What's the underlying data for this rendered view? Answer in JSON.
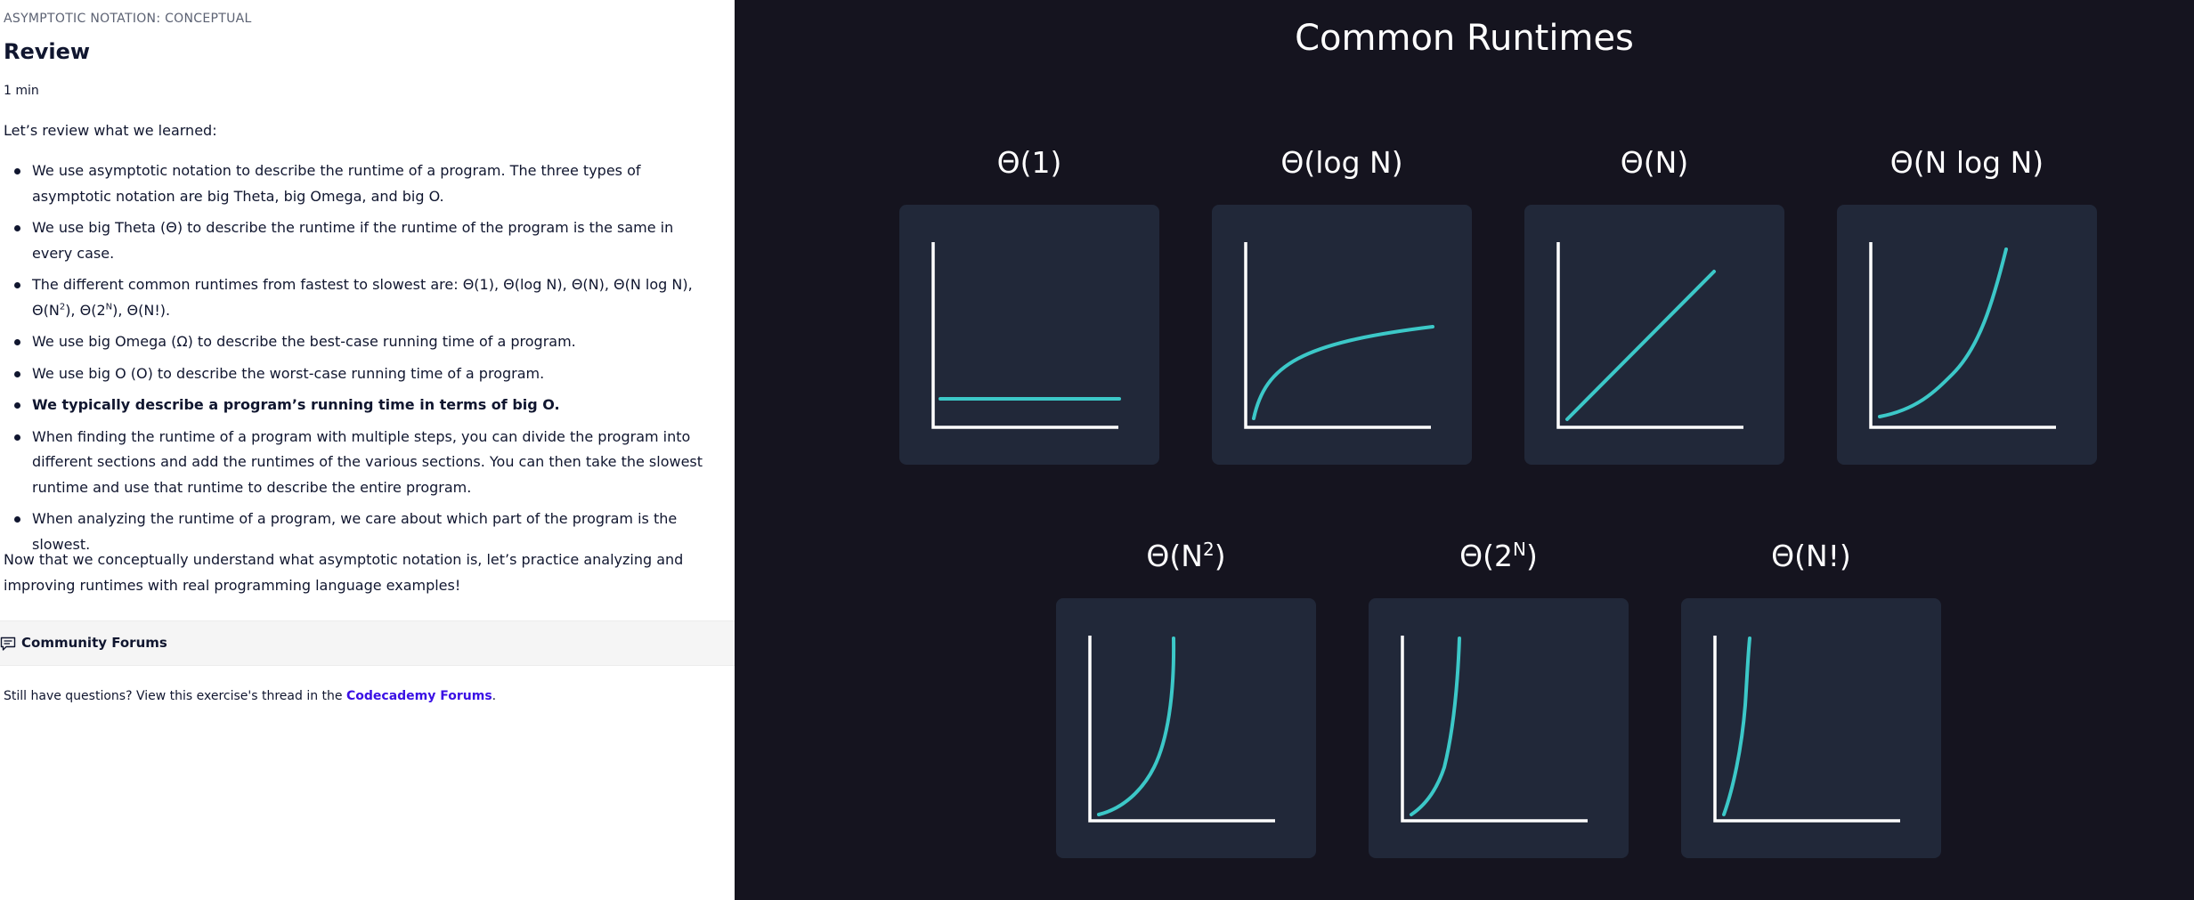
{
  "lesson": {
    "category": "ASYMPTOTIC NOTATION: CONCEPTUAL",
    "title": "Review",
    "duration": "1 min",
    "intro": "Let’s review what we learned:",
    "points": [
      {
        "text": "We use asymptotic notation to describe the runtime of a program. The three types of asymptotic notation are big Theta, big Omega, and big O."
      },
      {
        "text": "We use big Theta (Θ) to describe the runtime if the runtime of the program is the same in every case."
      },
      {
        "pre": "The different common runtimes from fastest to slowest are: Θ(1), Θ(log N), Θ(N), Θ(N log N), Θ(N",
        "sup1": "2",
        "mid": "), Θ(2",
        "sup2": "N",
        "post": "), Θ(N!)."
      },
      {
        "text": "We use big Omega (Ω) to describe the best-case running time of a program."
      },
      {
        "text": "We use big O (O) to describe the worst-case running time of a program."
      },
      {
        "text": "We typically describe a program’s running time in terms of big O."
      },
      {
        "text": "When finding the runtime of a program with multiple steps, you can divide the program into different sections and add the runtimes of the various sections. You can then take the slowest runtime and use that runtime to describe the entire program."
      },
      {
        "text": "When analyzing the runtime of a program, we care about which part of the program is the slowest."
      }
    ],
    "outro": "Now that we conceptually understand what asymptotic notation is, let’s practice analyzing and improving runtimes with real programming language examples!"
  },
  "forums": {
    "heading": "Community Forums",
    "question_prefix": "Still have questions? View this exercise's thread in the ",
    "link_text": "Codecademy Forums",
    "question_suffix": "."
  },
  "diagram": {
    "title": "Common Runtimes",
    "curve_color": "#3cc8c8",
    "axis_color": "#ffffff",
    "cards": [
      {
        "label": "Θ(1)",
        "label_base": "",
        "label_sup": "",
        "label_end": "",
        "shape": "constant"
      },
      {
        "label": "Θ(log N)",
        "label_base": "",
        "label_sup": "",
        "label_end": "",
        "shape": "log"
      },
      {
        "label": "Θ(N)",
        "label_base": "",
        "label_sup": "",
        "label_end": "",
        "shape": "linear"
      },
      {
        "label": "Θ(N log N)",
        "label_base": "",
        "label_sup": "",
        "label_end": "",
        "shape": "nlogn"
      },
      {
        "label": "",
        "label_base": "Θ(N",
        "label_sup": "2",
        "label_end": ")",
        "shape": "quadratic"
      },
      {
        "label": "",
        "label_base": "Θ(2",
        "label_sup": "N",
        "label_end": ")",
        "shape": "exponential"
      },
      {
        "label": "Θ(N!)",
        "label_base": "",
        "label_sup": "",
        "label_end": "",
        "shape": "factorial"
      }
    ]
  }
}
